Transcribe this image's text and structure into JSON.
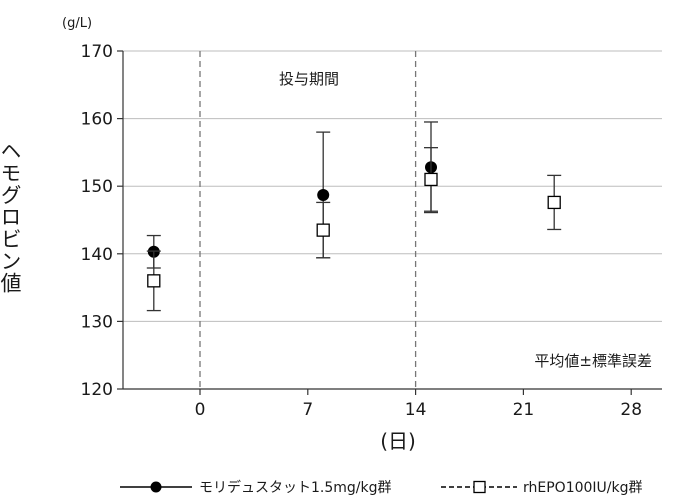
{
  "chart_data": {
    "type": "scatter",
    "unit": "(g/L)",
    "ylabel": "ヘモグロビン値",
    "xlabel": "(日)",
    "ylim": [
      120,
      170
    ],
    "yticks": [
      120,
      130,
      140,
      150,
      160,
      170
    ],
    "xlim": [
      -5,
      30
    ],
    "xticks": [
      0,
      7,
      14,
      21,
      28
    ],
    "grid": "horizontal",
    "dosing_period": {
      "label": "投与期間",
      "start": 0,
      "end": 14
    },
    "note": "平均値±標準誤差",
    "legend_position": "bottom",
    "series": [
      {
        "name": "モリデュスタット1.5mg/kg群",
        "marker": "filled-circle",
        "line_style": "solid",
        "color": "#000000",
        "points": [
          {
            "x": -3,
            "y": 140.3,
            "err": 2.4
          },
          {
            "x": 8,
            "y": 148.7,
            "err": 9.3
          },
          {
            "x": 15,
            "y": 152.8,
            "err": 6.7
          }
        ]
      },
      {
        "name": "rhEPO100IU/kg群",
        "marker": "open-square",
        "line_style": "dashed",
        "color": "#000000",
        "points": [
          {
            "x": -3,
            "y": 136.0,
            "err": 4.4
          },
          {
            "x": 8,
            "y": 143.5,
            "err": 4.1
          },
          {
            "x": 15,
            "y": 151.0,
            "err": 4.7
          },
          {
            "x": 23,
            "y": 147.6,
            "err": 4.0
          }
        ]
      }
    ]
  }
}
